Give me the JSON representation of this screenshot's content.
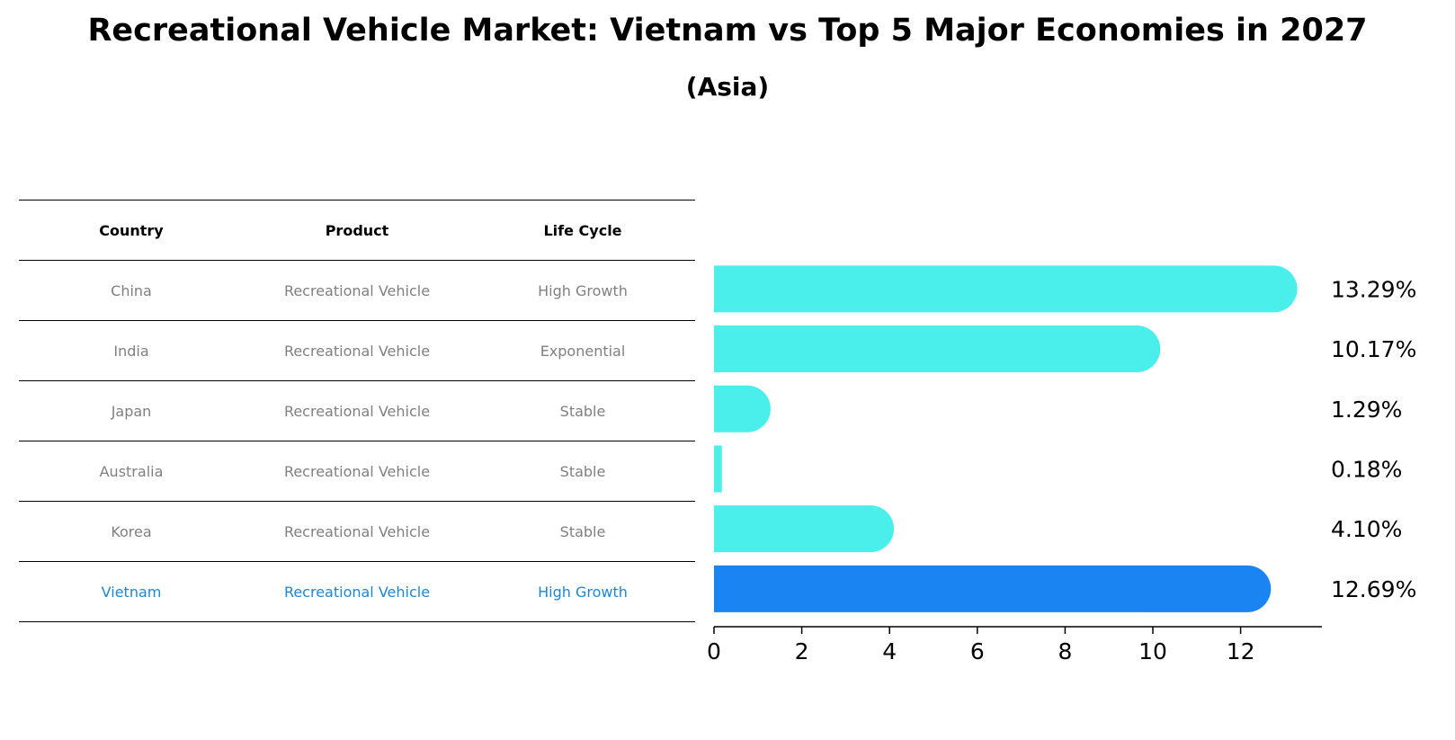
{
  "title": "Recreational Vehicle Market: Vietnam vs Top 5 Major Economies in 2027",
  "subtitle": "(Asia)",
  "table": {
    "headers": [
      "Country",
      "Product",
      "Life Cycle"
    ],
    "rows": [
      [
        "China",
        "Recreational Vehicle",
        "High Growth"
      ],
      [
        "India",
        "Recreational Vehicle",
        "Exponential"
      ],
      [
        "Japan",
        "Recreational Vehicle",
        "Stable"
      ],
      [
        "Australia",
        "Recreational Vehicle",
        "Stable"
      ],
      [
        "Korea",
        "Recreational Vehicle",
        "Stable"
      ],
      [
        "Vietnam",
        "Recreational Vehicle",
        "High Growth"
      ]
    ],
    "highlight_row": 5
  },
  "colors": {
    "bar": "#4aeeeb",
    "highlight_bar": "#1a84f2",
    "highlight_text": "#1f86d6",
    "text_gray": "#808080"
  },
  "chart_data": {
    "type": "bar",
    "orientation": "horizontal",
    "categories": [
      "China",
      "India",
      "Japan",
      "Australia",
      "Korea",
      "Vietnam"
    ],
    "values": [
      13.29,
      10.17,
      1.29,
      0.18,
      4.1,
      12.69
    ],
    "value_labels": [
      "13.29%",
      "10.17%",
      "1.29%",
      "0.18%",
      "4.10%",
      "12.69%"
    ],
    "xticks": [
      "0",
      "2",
      "4",
      "6",
      "8",
      "10",
      "12"
    ],
    "xlim": [
      0,
      13.9
    ],
    "grid": false,
    "highlight": "Vietnam"
  }
}
